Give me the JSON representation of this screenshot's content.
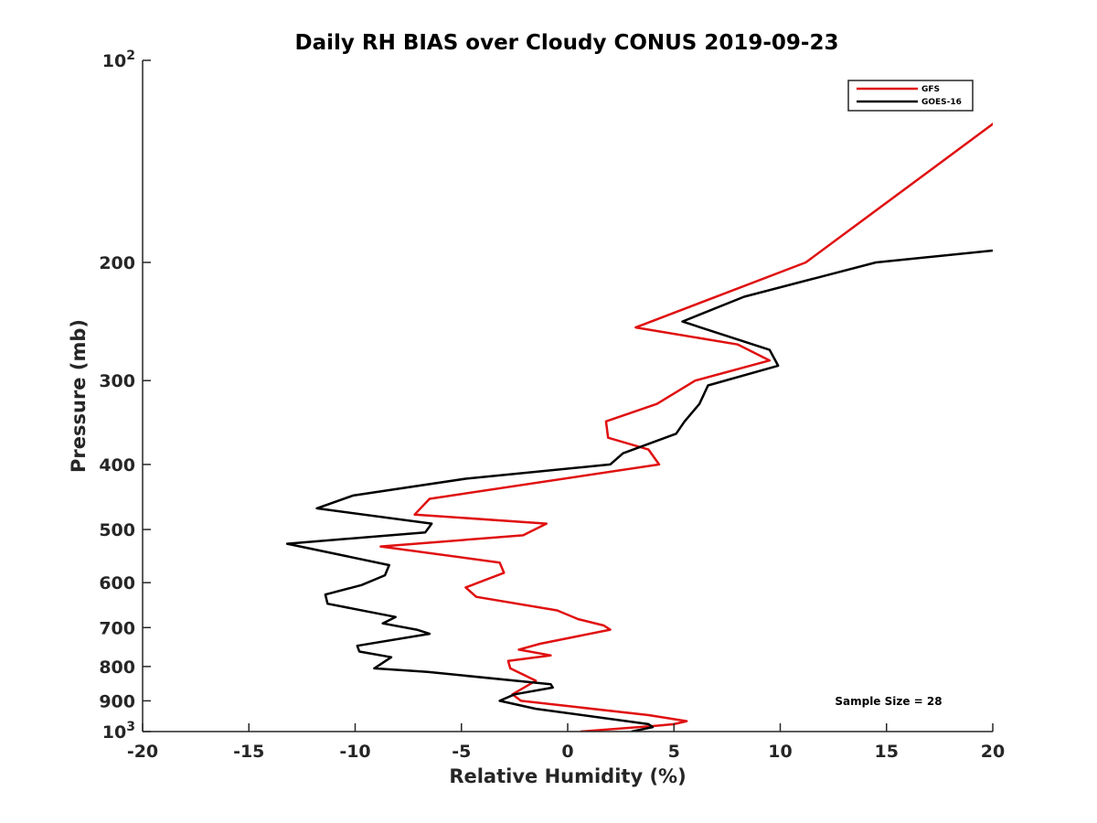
{
  "chart_data": {
    "type": "line",
    "title": "Daily RH BIAS over Cloudy CONUS 2019-09-23",
    "xlabel": "Relative Humidity (%)",
    "ylabel": "Pressure (mb)",
    "xlim": [
      -20,
      20
    ],
    "ylim": [
      100,
      1000
    ],
    "y_scale": "log",
    "y_reversed": true,
    "grid": false,
    "legend_position": "top-right",
    "annotation": "Sample Size = 28",
    "x_ticks": [
      "-20",
      "-15",
      "-10",
      "-5",
      "0",
      "5",
      "10",
      "15",
      "20"
    ],
    "y_ticks": [
      {
        "value": 100,
        "base": "10",
        "exp": "2"
      },
      {
        "value": 200,
        "label": "200"
      },
      {
        "value": 300,
        "label": "300"
      },
      {
        "value": 400,
        "label": "400"
      },
      {
        "value": 500,
        "label": "500"
      },
      {
        "value": 600,
        "label": "600"
      },
      {
        "value": 700,
        "label": "700"
      },
      {
        "value": 800,
        "label": "800"
      },
      {
        "value": 900,
        "label": "900"
      },
      {
        "value": 1000,
        "base": "10",
        "exp": "3"
      }
    ],
    "series": [
      {
        "name": "GFS",
        "color": "#e01010",
        "points": [
          [
            26,
            90
          ],
          [
            11.2,
            200
          ],
          [
            3.2,
            250
          ],
          [
            8,
            265
          ],
          [
            9.5,
            280
          ],
          [
            6,
            300
          ],
          [
            4.2,
            325
          ],
          [
            1.8,
            345
          ],
          [
            1.9,
            365
          ],
          [
            3.8,
            380
          ],
          [
            4.3,
            400
          ],
          [
            -6.5,
            450
          ],
          [
            -7.2,
            475
          ],
          [
            -1,
            490
          ],
          [
            -2.1,
            510
          ],
          [
            -8.8,
            530
          ],
          [
            -3.2,
            560
          ],
          [
            -3,
            580
          ],
          [
            -4.8,
            610
          ],
          [
            -4.3,
            630
          ],
          [
            -0.5,
            660
          ],
          [
            0.5,
            680
          ],
          [
            1.7,
            695
          ],
          [
            2,
            705
          ],
          [
            -1.3,
            740
          ],
          [
            -2.3,
            755
          ],
          [
            -0.8,
            770
          ],
          [
            -2.8,
            785
          ],
          [
            -2.7,
            805
          ],
          [
            -1.5,
            840
          ],
          [
            -2.6,
            880
          ],
          [
            -2.2,
            900
          ],
          [
            3.8,
            945
          ],
          [
            5.6,
            965
          ],
          [
            5,
            975
          ],
          [
            4.2,
            980
          ],
          [
            0.6,
            1000
          ]
        ]
      },
      {
        "name": "GOES-16",
        "color": "#000000",
        "points": [
          [
            25,
            185
          ],
          [
            14.5,
            200
          ],
          [
            8.3,
            225
          ],
          [
            5.4,
            245
          ],
          [
            9.5,
            270
          ],
          [
            9.9,
            285
          ],
          [
            6.6,
            305
          ],
          [
            6.2,
            325
          ],
          [
            5.5,
            345
          ],
          [
            5.1,
            360
          ],
          [
            2.6,
            385
          ],
          [
            2.0,
            400
          ],
          [
            -4.8,
            420
          ],
          [
            -10.1,
            445
          ],
          [
            -11.8,
            465
          ],
          [
            -6.4,
            490
          ],
          [
            -6.7,
            505
          ],
          [
            -13.2,
            525
          ],
          [
            -8.4,
            565
          ],
          [
            -8.6,
            585
          ],
          [
            -9.7,
            605
          ],
          [
            -11.4,
            625
          ],
          [
            -11.3,
            645
          ],
          [
            -8.1,
            675
          ],
          [
            -8.7,
            690
          ],
          [
            -7.1,
            705
          ],
          [
            -6.5,
            715
          ],
          [
            -9.9,
            745
          ],
          [
            -9.8,
            760
          ],
          [
            -8.3,
            775
          ],
          [
            -9.1,
            805
          ],
          [
            -6.6,
            815
          ],
          [
            -0.8,
            850
          ],
          [
            -0.7,
            860
          ],
          [
            -2.5,
            880
          ],
          [
            -3.2,
            900
          ],
          [
            -1.5,
            925
          ],
          [
            3.8,
            975
          ],
          [
            4,
            985
          ],
          [
            3,
            1000
          ]
        ]
      }
    ]
  }
}
